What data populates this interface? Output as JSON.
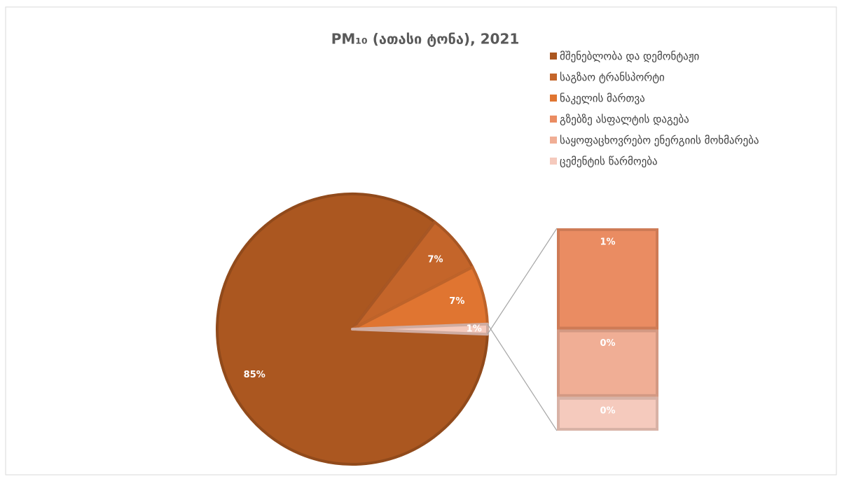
{
  "chart_data": {
    "type": "bar-of-pie",
    "title": "PM₁₀ (ათასი ტონა), 2021",
    "categories": [
      "მშენებლობა და დემონტაჟი",
      "საგზაო ტრანსპორტი",
      "ნაკელის მართვა",
      "გზებზე ასფალტის დაგება",
      "საყოფაცხოვრებო ენერგიის მოხმარება",
      "ცემენტის წარმოება"
    ],
    "values": [
      85,
      7,
      7,
      0.6,
      0.4,
      0.2
    ],
    "value_labels": [
      "85%",
      "7%",
      "7%",
      "1%",
      "0%",
      "0%"
    ],
    "colors": [
      "#ab5720",
      "#c4652a",
      "#e07531",
      "#ea8c62",
      "#f0ae95",
      "#f5cabd"
    ],
    "secondary_count": 3,
    "other_value_label": "1%",
    "legend": "top-right"
  }
}
